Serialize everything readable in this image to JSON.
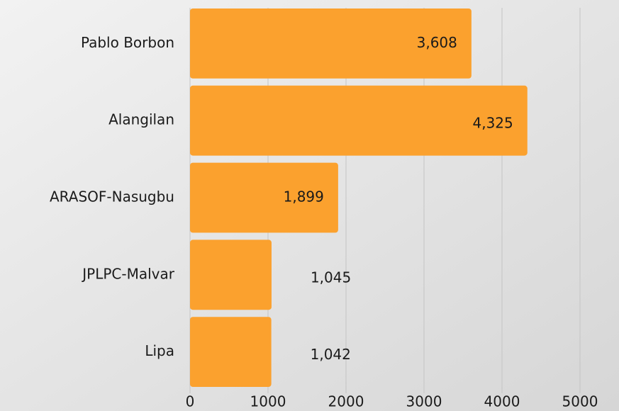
{
  "chart_data": {
    "type": "bar",
    "orientation": "horizontal",
    "categories": [
      "Pablo Borbon",
      "Alangilan",
      "ARASOF-Nasugbu",
      "JPLPC-Malvar",
      "Lipa"
    ],
    "values": [
      3608,
      4325,
      1899,
      1045,
      1042
    ],
    "value_labels": [
      "3,608",
      "4,325",
      "1,899",
      "1,045",
      "1,042"
    ],
    "color": "#fba12e",
    "xlim": [
      0,
      5500
    ],
    "xticks": [
      0,
      1000,
      2000,
      3000,
      4000,
      5000
    ],
    "grid": true
  }
}
